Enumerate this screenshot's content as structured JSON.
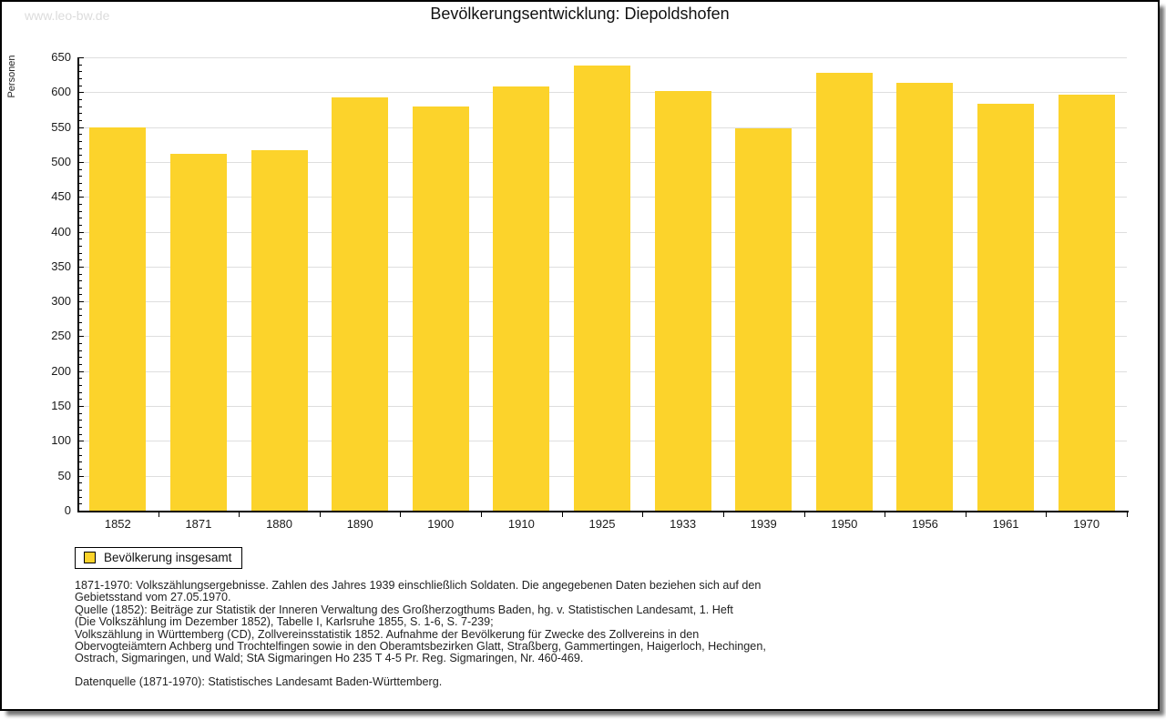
{
  "watermark": "www.leo-bw.de",
  "title": "Bevölkerungsentwicklung: Diepoldshofen",
  "legend": {
    "label": "Bevölkerung insgesamt"
  },
  "footnote_lines": [
    "1871-1970: Volkszählungsergebnisse. Zahlen des Jahres 1939 einschließlich Soldaten. Die angegebenen Daten beziehen sich auf den",
    "Gebietsstand vom 27.05.1970.",
    "Quelle (1852): Beiträge zur Statistik der Inneren Verwaltung des Großherzogthums Baden, hg. v. Statistischen Landesamt, 1. Heft",
    "(Die Volkszählung im Dezember 1852), Tabelle I, Karlsruhe 1855, S. 1-6, S. 7-239;",
    "Volkszählung in Württemberg (CD), Zollvereinsstatistik 1852. Aufnahme der Bevölkerung für Zwecke des Zollvereins in den",
    "Obervogteiämtern Achberg und Trochtelfingen sowie in den Oberamtsbezirken Glatt, Straßberg, Gammertingen, Haigerloch, Hechingen,",
    "Ostrach, Sigmaringen, und Wald; StA Sigmaringen Ho 235 T 4-5 Pr. Reg. Sigmaringen, Nr. 460-469."
  ],
  "datasource": "Datenquelle (1871-1970): Statistisches Landesamt Baden-Württemberg.",
  "chart_data": {
    "type": "bar",
    "title": "Bevölkerungsentwicklung: Diepoldshofen",
    "categories": [
      "1852",
      "1871",
      "1880",
      "1890",
      "1900",
      "1910",
      "1925",
      "1933",
      "1939",
      "1950",
      "1956",
      "1961",
      "1970"
    ],
    "values": [
      550,
      512,
      517,
      592,
      579,
      608,
      638,
      602,
      548,
      628,
      613,
      583,
      596
    ],
    "series_name": "Bevölkerung insgesamt",
    "xlabel": "",
    "ylabel": "Personen",
    "ylim": [
      0,
      650
    ],
    "ytick_step": 50,
    "minor_tick_step": 10,
    "grid": true,
    "legend_position": "bottom-left",
    "bar_color": "#FCD32B",
    "grid_color": "#DEDEDE",
    "axis_color": "#000000"
  }
}
